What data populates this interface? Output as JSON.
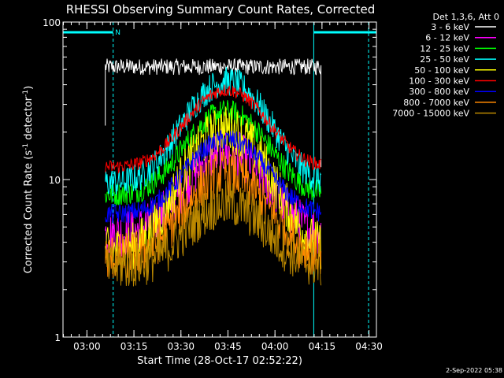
{
  "chart_data": {
    "type": "line",
    "title": "RHESSI Observing Summary Count Rates, Corrected",
    "xlabel": "Start Time (28-Oct-17 02:52:22)",
    "ylabel_parts": [
      "Corrected Count Rate (s",
      "-1",
      " detector",
      "-1",
      ")"
    ],
    "y_scale": "log",
    "ylim": [
      1,
      100
    ],
    "y_ticks": [
      {
        "value": 1,
        "label": "1"
      },
      {
        "value": 10,
        "label": "10"
      },
      {
        "value": 100,
        "label": "100"
      }
    ],
    "xlim_minutes": [
      0,
      100
    ],
    "x_ticks": [
      {
        "minutes": 7.63,
        "label": "03:00"
      },
      {
        "minutes": 22.63,
        "label": "03:15"
      },
      {
        "minutes": 37.63,
        "label": "03:30"
      },
      {
        "minutes": 52.63,
        "label": "03:45"
      },
      {
        "minutes": 67.63,
        "label": "04:00"
      },
      {
        "minutes": 82.63,
        "label": "04:15"
      },
      {
        "minutes": 97.63,
        "label": "04:30"
      }
    ],
    "legend_header": "Det 1,3,6, Att 0",
    "legend_position": "right",
    "data_range_minutes": [
      13.5,
      82.3
    ],
    "series": [
      {
        "name": "3 - 6 keV",
        "color": "#ffffff",
        "base": 52,
        "peak": 52,
        "noise": 0.12
      },
      {
        "name": "6 - 12 keV",
        "color": "#ff00ff",
        "base": 4.5,
        "peak": 15,
        "noise": 0.35
      },
      {
        "name": "12 - 25 keV",
        "color": "#00ff00",
        "base": 8,
        "peak": 27,
        "noise": 0.18
      },
      {
        "name": "25 - 50 keV",
        "color": "#00ffff",
        "base": 9.5,
        "peak": 42,
        "noise": 0.22
      },
      {
        "name": "50 - 100 keV",
        "color": "#ffff00",
        "base": 3.5,
        "peak": 21,
        "noise": 0.35
      },
      {
        "name": "100 - 300 keV",
        "color": "#ff0000",
        "base": 12,
        "peak": 37,
        "noise": 0.1
      },
      {
        "name": "300 - 800 keV",
        "color": "#0000ff",
        "base": 6,
        "peak": 18,
        "noise": 0.15
      },
      {
        "name": "800 - 7000 keV",
        "color": "#ff8800",
        "base": 3.2,
        "peak": 11,
        "noise": 0.35
      },
      {
        "name": "7000 - 15000 keV",
        "color": "#bb8800",
        "base": 2.8,
        "peak": 7,
        "noise": 0.35
      }
    ],
    "flag_bars": [
      {
        "label": "N",
        "start_minutes": 0,
        "end_minutes": 16,
        "label_minutes": 17.5,
        "color": "#00ffff"
      },
      {
        "label": "",
        "start_minutes": 80,
        "end_minutes": 100,
        "label_minutes": null,
        "color": "#00ffff"
      }
    ],
    "vertical_markers": [
      {
        "minutes": 0,
        "style": "solid",
        "color": "#00ffff"
      },
      {
        "minutes": 16,
        "style": "dashed",
        "color": "#00ffff"
      },
      {
        "minutes": 80,
        "style": "solid",
        "color": "#00ffff"
      },
      {
        "minutes": 97.5,
        "style": "dashed",
        "color": "#00ffff"
      }
    ]
  },
  "footer_timestamp": "2-Sep-2022 05:38"
}
